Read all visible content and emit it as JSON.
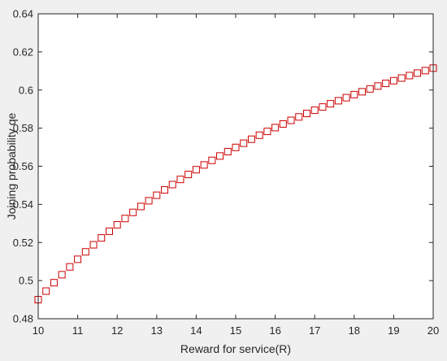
{
  "chart_data": {
    "type": "scatter",
    "title": "",
    "xlabel": "Reward for service(R)",
    "ylabel": "Joining probability qe",
    "xlim": [
      10,
      20
    ],
    "ylim": [
      0.48,
      0.64
    ],
    "xticks": [
      10,
      11,
      12,
      13,
      14,
      15,
      16,
      17,
      18,
      19,
      20
    ],
    "yticks": [
      0.48,
      0.5,
      0.52,
      0.54,
      0.56,
      0.58,
      0.6,
      0.62,
      0.64
    ],
    "xtick_labels": [
      "10",
      "11",
      "12",
      "13",
      "14",
      "15",
      "16",
      "17",
      "18",
      "19",
      "20"
    ],
    "ytick_labels": [
      "0.48",
      "0.5",
      "0.52",
      "0.54",
      "0.56",
      "0.58",
      "0.6",
      "0.62",
      "0.64"
    ],
    "grid": false,
    "marker": "square",
    "marker_color": "#cc0000",
    "series": [
      {
        "x": [
          10.0,
          10.2,
          10.4,
          10.6,
          10.8,
          11.0,
          11.2,
          11.4,
          11.6,
          11.8,
          12.0,
          12.2,
          12.4,
          12.6,
          12.8,
          13.0,
          13.2,
          13.4,
          13.6,
          13.8,
          14.0,
          14.2,
          14.4,
          14.6,
          14.8,
          15.0,
          15.2,
          15.4,
          15.6,
          15.8,
          16.0,
          16.2,
          16.4,
          16.6,
          16.8,
          17.0,
          17.2,
          17.4,
          17.6,
          17.8,
          18.0,
          18.2,
          18.4,
          18.6,
          18.8,
          19.0,
          19.2,
          19.4,
          19.6,
          19.8,
          20.0
        ],
        "y": [
          0.49,
          0.4945,
          0.4989,
          0.5031,
          0.5072,
          0.5112,
          0.5151,
          0.5188,
          0.5224,
          0.5259,
          0.5293,
          0.5326,
          0.5358,
          0.5389,
          0.5419,
          0.5448,
          0.5476,
          0.5504,
          0.5531,
          0.5557,
          0.5582,
          0.5607,
          0.5631,
          0.5654,
          0.5677,
          0.5699,
          0.5721,
          0.5742,
          0.5763,
          0.5783,
          0.5803,
          0.5822,
          0.5841,
          0.5859,
          0.5877,
          0.5894,
          0.5911,
          0.5928,
          0.5944,
          0.596,
          0.5976,
          0.5991,
          0.6006,
          0.6021,
          0.6035,
          0.6049,
          0.6063,
          0.6076,
          0.6089,
          0.6102,
          0.6115
        ]
      }
    ]
  }
}
